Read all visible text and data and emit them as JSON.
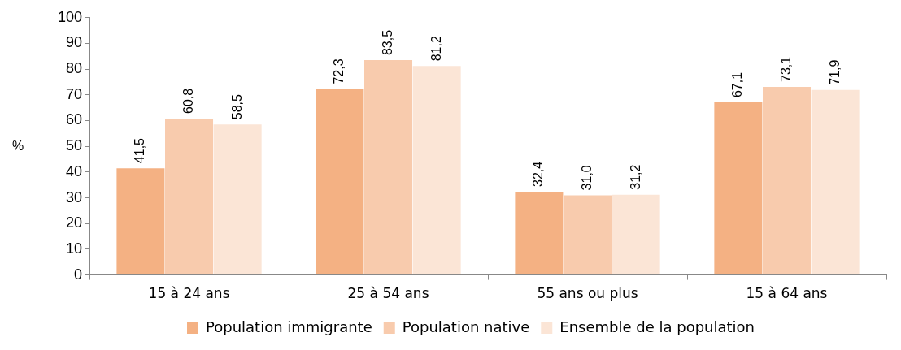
{
  "chart_data": {
    "type": "bar",
    "ylabel": "%",
    "categories": [
      "15 à 24 ans",
      "25 à 54 ans",
      "55 ans ou plus",
      "15 à 64 ans"
    ],
    "series": [
      {
        "name": "Population immigrante",
        "color": "#f4b183",
        "values": [
          41.5,
          72.3,
          32.4,
          67.1
        ],
        "value_labels": [
          "41,5",
          "72,3",
          "32,4",
          "67,1"
        ]
      },
      {
        "name": "Population native",
        "color": "#f8cbad",
        "values": [
          60.8,
          83.5,
          31.0,
          73.1
        ],
        "value_labels": [
          "60,8",
          "83,5",
          "31,0",
          "73,1"
        ]
      },
      {
        "name": "Ensemble de la population",
        "color": "#fbe5d6",
        "values": [
          58.5,
          81.2,
          31.2,
          71.9
        ],
        "value_labels": [
          "58,5",
          "81,2",
          "31,2",
          "71,9"
        ]
      }
    ],
    "ylim": [
      0,
      100
    ],
    "yticks": [
      0,
      10,
      20,
      30,
      40,
      50,
      60,
      70,
      80,
      90,
      100
    ],
    "grid": false,
    "legend": "bottom"
  }
}
